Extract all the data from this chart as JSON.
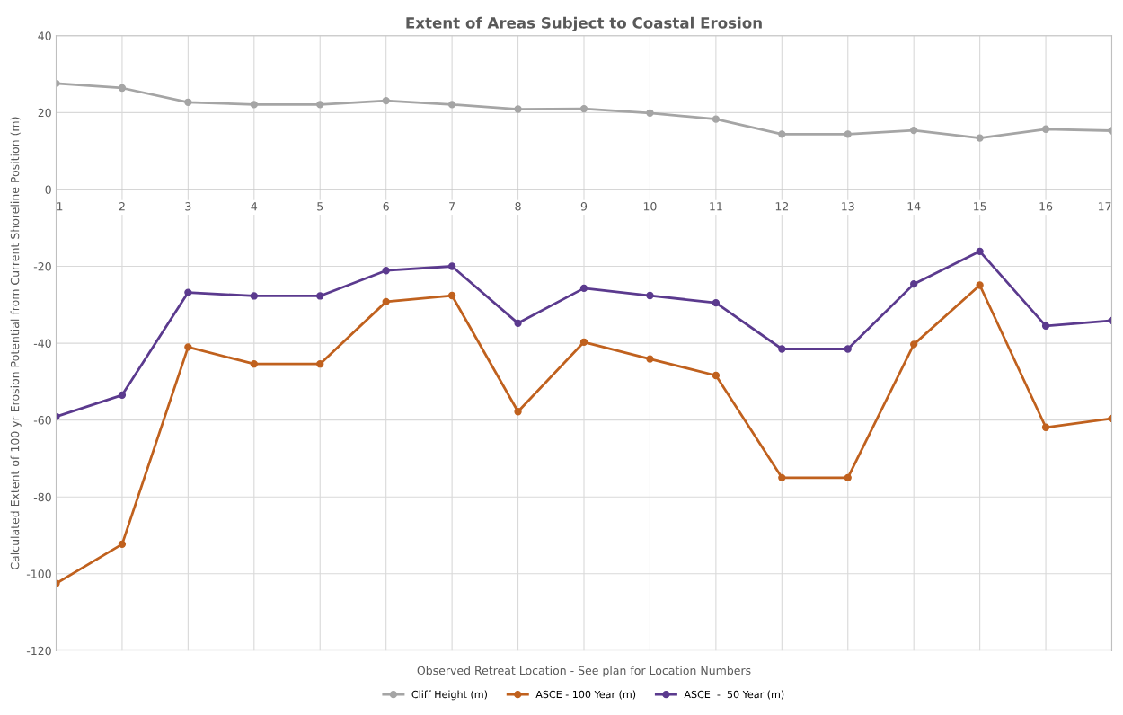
{
  "chart_data": {
    "type": "line",
    "title": "Extent of Areas Subject to Coastal Erosion",
    "xlabel": "Observed Retreat Location - See plan for Location Numbers",
    "ylabel": "Calculated Extent of 100 yr Erosion Potential from Current Shoreline Position (m)",
    "categories": [
      "1",
      "2",
      "3",
      "4",
      "5",
      "6",
      "7",
      "8",
      "9",
      "10",
      "11",
      "12",
      "13",
      "14",
      "15",
      "16",
      "17"
    ],
    "series": [
      {
        "name": "Cliff Height (m)",
        "color": "#a5a5a5",
        "values": [
          27.6,
          26.4,
          22.7,
          22.1,
          22.1,
          23.1,
          22.1,
          20.9,
          21.0,
          19.9,
          18.3,
          14.4,
          14.4,
          15.4,
          13.4,
          15.7,
          15.3
        ]
      },
      {
        "name": "ASCE - 100 Year (m)",
        "color": "#c0611e",
        "values": [
          -102.5,
          -92.3,
          -41.0,
          -45.4,
          -45.4,
          -29.2,
          -27.6,
          -57.8,
          -39.7,
          -44.1,
          -48.4,
          -75.0,
          -75.0,
          -40.3,
          -24.9,
          -61.9,
          -59.6
        ]
      },
      {
        "name": "ASCE  -  50 Year (m)",
        "color": "#5b3a8e",
        "values": [
          -59.1,
          -53.5,
          -26.8,
          -27.7,
          -27.7,
          -21.1,
          -20.0,
          -34.8,
          -25.7,
          -27.6,
          -29.5,
          -41.5,
          -41.5,
          -24.6,
          -16.1,
          -35.5,
          -34.1
        ]
      }
    ],
    "ylim": [
      -120,
      40
    ],
    "yticks": [
      -120,
      -100,
      -80,
      -60,
      -40,
      -20,
      0,
      20,
      40
    ],
    "grid": true,
    "legend": "bottom",
    "marker": "circle",
    "line_style": "solid"
  }
}
